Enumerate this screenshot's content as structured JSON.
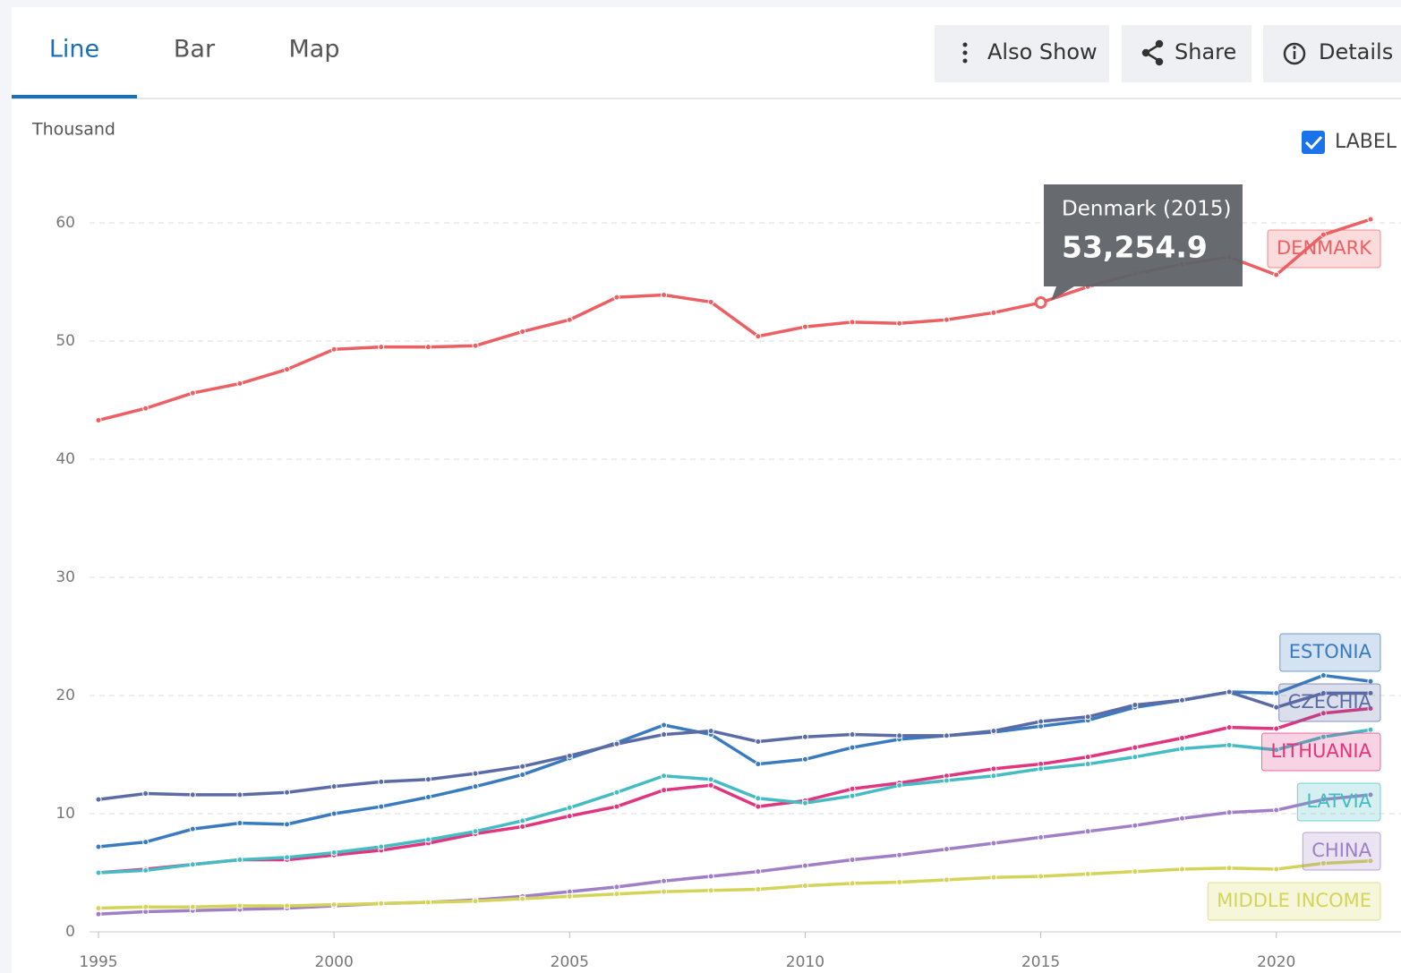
{
  "tabs": [
    "Line",
    "Bar",
    "Map"
  ],
  "buttons": [
    "Also Show",
    "Share",
    "Details"
  ],
  "label_toggle": "LABEL",
  "chart_data": {
    "type": "line",
    "y_label": "Thousand",
    "x": [
      1995,
      1996,
      1997,
      1998,
      1999,
      2000,
      2001,
      2002,
      2003,
      2004,
      2005,
      2006,
      2007,
      2008,
      2009,
      2010,
      2011,
      2012,
      2013,
      2014,
      2015,
      2016,
      2017,
      2018,
      2019,
      2020,
      2021,
      2022
    ],
    "xlim": [
      1995,
      2022
    ],
    "xticks": [
      1995,
      2000,
      2005,
      2010,
      2015,
      2020
    ],
    "ylim": [
      0,
      60
    ],
    "yticks": [
      0,
      10,
      20,
      30,
      40,
      50,
      60
    ],
    "grid": true,
    "series": [
      {
        "name": "Denmark",
        "color": "#ec5f63",
        "values": [
          43.3,
          44.3,
          45.6,
          46.4,
          47.6,
          49.3,
          49.5,
          49.5,
          49.6,
          50.8,
          51.8,
          53.7,
          53.9,
          53.3,
          50.4,
          51.2,
          51.6,
          51.5,
          51.8,
          52.4,
          53.2549,
          54.6,
          55.7,
          56.5,
          57.1,
          55.6,
          59.0,
          60.3
        ]
      },
      {
        "name": "Estonia",
        "color": "#3a7bbf",
        "values": [
          7.2,
          7.6,
          8.7,
          9.2,
          9.1,
          10.0,
          10.6,
          11.4,
          12.3,
          13.3,
          14.7,
          16.0,
          17.5,
          16.7,
          14.2,
          14.6,
          15.6,
          16.3,
          16.6,
          16.9,
          17.4,
          17.9,
          19.0,
          19.6,
          20.3,
          20.2,
          21.7,
          21.2
        ]
      },
      {
        "name": "Czechia",
        "color": "#5b6ba6",
        "values": [
          11.2,
          11.7,
          11.6,
          11.6,
          11.8,
          12.3,
          12.7,
          12.9,
          13.4,
          14.0,
          14.9,
          15.9,
          16.7,
          17.0,
          16.1,
          16.5,
          16.7,
          16.6,
          16.6,
          17.0,
          17.8,
          18.2,
          19.2,
          19.6,
          20.3,
          19.0,
          20.2,
          20.2
        ]
      },
      {
        "name": "Lithuania",
        "color": "#e0357f",
        "values": [
          5.0,
          5.3,
          5.7,
          6.1,
          6.1,
          6.5,
          6.9,
          7.5,
          8.3,
          8.9,
          9.8,
          10.6,
          12.0,
          12.4,
          10.6,
          11.1,
          12.1,
          12.6,
          13.2,
          13.8,
          14.2,
          14.8,
          15.6,
          16.4,
          17.3,
          17.2,
          18.5,
          18.9
        ]
      },
      {
        "name": "Latvia",
        "color": "#45bcc4",
        "values": [
          5.0,
          5.2,
          5.7,
          6.1,
          6.3,
          6.7,
          7.2,
          7.8,
          8.5,
          9.4,
          10.5,
          11.8,
          13.2,
          12.9,
          11.3,
          10.9,
          11.5,
          12.4,
          12.8,
          13.2,
          13.8,
          14.2,
          14.8,
          15.5,
          15.8,
          15.4,
          16.5,
          17.1
        ]
      },
      {
        "name": "China",
        "color": "#a07fc6",
        "values": [
          1.5,
          1.7,
          1.8,
          1.9,
          2.0,
          2.2,
          2.4,
          2.5,
          2.7,
          3.0,
          3.4,
          3.8,
          4.3,
          4.7,
          5.1,
          5.6,
          6.1,
          6.5,
          7.0,
          7.5,
          8.0,
          8.5,
          9.0,
          9.6,
          10.1,
          10.3,
          11.2,
          11.6
        ]
      },
      {
        "name": "Middle income",
        "color": "#d4d45a",
        "values": [
          2.0,
          2.1,
          2.1,
          2.2,
          2.2,
          2.3,
          2.4,
          2.5,
          2.6,
          2.8,
          3.0,
          3.2,
          3.4,
          3.5,
          3.6,
          3.9,
          4.1,
          4.2,
          4.4,
          4.6,
          4.7,
          4.9,
          5.1,
          5.3,
          5.4,
          5.3,
          5.8,
          6.0
        ]
      }
    ],
    "tooltip": {
      "title": "Denmark (2015)",
      "value": "53,254.9"
    }
  }
}
